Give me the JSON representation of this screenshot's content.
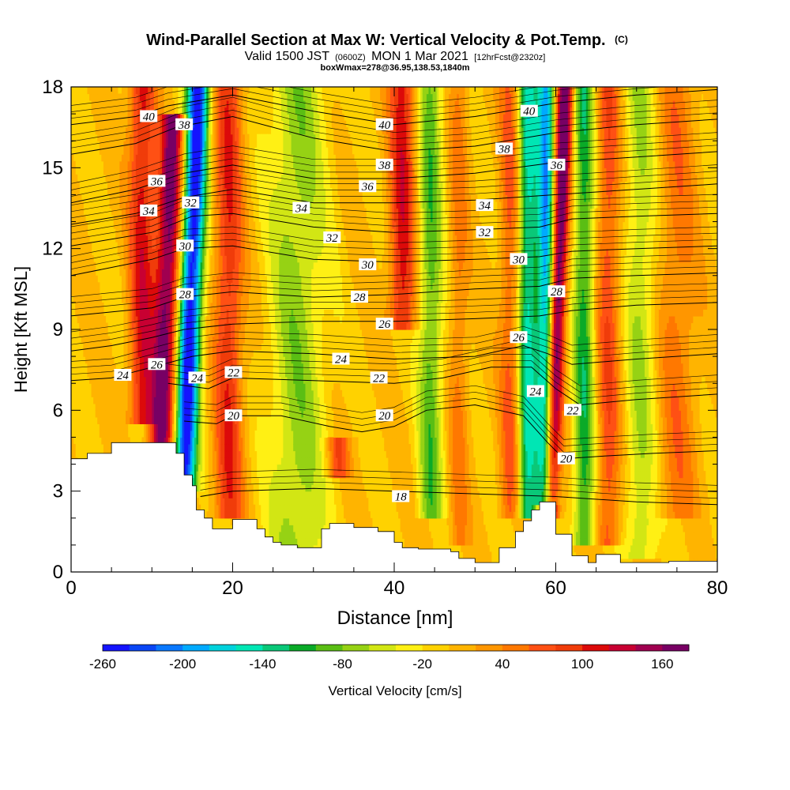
{
  "chart_data": {
    "type": "heatmap",
    "title": "Wind-Parallel Section at Max W: Vertical Velocity & Pot.Temp.",
    "title_mark": "(C)",
    "subtitle_parts": [
      "Valid 1500 JST",
      "(0600Z)",
      "MON 1 Mar 2021",
      "[12hrFcst@2320z]"
    ],
    "subtitle2": "boxWmax=278@36.95,138.53,1840m",
    "xlabel": "Distance [nm]",
    "ylabel": "Height [Kft MSL]",
    "xlim": [
      0,
      80
    ],
    "ylim": [
      0,
      18
    ],
    "x_ticks": [
      0,
      20,
      40,
      60,
      80
    ],
    "y_ticks": [
      0,
      3,
      6,
      9,
      12,
      15,
      18
    ],
    "colorbar": {
      "label": "Vertical Velocity [cm/s]",
      "ticks": [
        -260,
        -200,
        -140,
        -80,
        -20,
        40,
        100,
        160
      ],
      "range": [
        -260,
        180
      ],
      "colors": [
        "#1414ff",
        "#0a46f5",
        "#0a78ff",
        "#00aaff",
        "#00d2dc",
        "#00e6b4",
        "#0ac878",
        "#0aaa28",
        "#5abe14",
        "#96d214",
        "#d2e614",
        "#fff014",
        "#ffd200",
        "#ffb400",
        "#ff9600",
        "#ff7800",
        "#ff5014",
        "#f03c0a",
        "#dc0a0a",
        "#c80032",
        "#a00050",
        "#780064"
      ]
    },
    "terrain": [
      [
        0,
        4.2
      ],
      [
        2,
        4.2
      ],
      [
        2,
        4.4
      ],
      [
        5,
        4.4
      ],
      [
        5,
        4.8
      ],
      [
        13,
        4.8
      ],
      [
        13,
        4.4
      ],
      [
        14,
        4.4
      ],
      [
        14,
        3.6
      ],
      [
        15,
        3.6
      ],
      [
        15,
        3.2
      ],
      [
        15.5,
        3.2
      ],
      [
        15.5,
        2.3
      ],
      [
        16.5,
        2.3
      ],
      [
        16.5,
        2.0
      ],
      [
        17.5,
        2.0
      ],
      [
        17.5,
        1.6
      ],
      [
        20,
        1.6
      ],
      [
        20,
        1.95
      ],
      [
        23,
        1.95
      ],
      [
        23,
        1.6
      ],
      [
        24,
        1.6
      ],
      [
        24,
        1.3
      ],
      [
        25,
        1.3
      ],
      [
        25,
        1.1
      ],
      [
        26,
        1.1
      ],
      [
        26,
        1.0
      ],
      [
        28,
        1.0
      ],
      [
        28,
        0.9
      ],
      [
        31,
        0.9
      ],
      [
        31,
        1.6
      ],
      [
        32,
        1.6
      ],
      [
        32,
        1.8
      ],
      [
        35,
        1.8
      ],
      [
        35,
        1.65
      ],
      [
        38,
        1.65
      ],
      [
        38,
        1.5
      ],
      [
        40,
        1.5
      ],
      [
        40,
        1.1
      ],
      [
        41,
        1.1
      ],
      [
        41,
        0.9
      ],
      [
        43,
        0.9
      ],
      [
        43,
        0.85
      ],
      [
        47,
        0.85
      ],
      [
        47,
        0.75
      ],
      [
        48,
        0.75
      ],
      [
        48,
        0.5
      ],
      [
        50,
        0.5
      ],
      [
        50,
        0.35
      ],
      [
        53,
        0.35
      ],
      [
        53,
        0.9
      ],
      [
        55,
        0.9
      ],
      [
        55,
        1.5
      ],
      [
        56,
        1.5
      ],
      [
        56,
        1.9
      ],
      [
        57,
        1.9
      ],
      [
        57,
        2.3
      ],
      [
        58,
        2.3
      ],
      [
        58,
        2.6
      ],
      [
        60,
        2.6
      ],
      [
        60,
        1.4
      ],
      [
        62,
        1.4
      ],
      [
        62,
        0.6
      ],
      [
        64,
        0.6
      ],
      [
        64,
        0.35
      ],
      [
        65,
        0.35
      ],
      [
        65,
        0.65
      ],
      [
        68,
        0.65
      ],
      [
        68,
        0.35
      ],
      [
        74,
        0.35
      ],
      [
        74,
        0.4
      ],
      [
        80,
        0.4
      ]
    ],
    "vertical_velocity_features": [
      {
        "x": 8.8,
        "width": 1.6,
        "amplitude": 110,
        "z_range": [
          5.5,
          18
        ]
      },
      {
        "x": 11.8,
        "width": 1.5,
        "amplitude": 170,
        "z_range": [
          2,
          17
        ]
      },
      {
        "x": 14.8,
        "width": 1.4,
        "amplitude": -260,
        "z_range": [
          3,
          18
        ]
      },
      {
        "x": 19.5,
        "width": 1.8,
        "amplitude": 95,
        "z_range": [
          2,
          18
        ]
      },
      {
        "x": 28,
        "width": 3.5,
        "amplitude": -70,
        "z_range": [
          0,
          18
        ]
      },
      {
        "x": 33,
        "width": 1.4,
        "amplitude": 80,
        "z_range": [
          3.5,
          5
        ]
      },
      {
        "x": 41,
        "width": 1.6,
        "amplitude": 110,
        "z_range": [
          9,
          18
        ]
      },
      {
        "x": 44.5,
        "width": 1.5,
        "amplitude": -90,
        "z_range": [
          2,
          18
        ]
      },
      {
        "x": 48,
        "width": 1.2,
        "amplitude": 45,
        "z_range": [
          1,
          18
        ]
      },
      {
        "x": 54.5,
        "width": 1.4,
        "amplitude": 70,
        "z_range": [
          2,
          18
        ]
      },
      {
        "x": 56.5,
        "width": 1.3,
        "amplitude": -150,
        "z_range": [
          2,
          18
        ]
      },
      {
        "x": 58.8,
        "width": 1.1,
        "amplitude": -190,
        "z_range": [
          2.5,
          18
        ]
      },
      {
        "x": 60.2,
        "width": 1.0,
        "amplitude": 200,
        "z_range": [
          2,
          18
        ]
      },
      {
        "x": 63.5,
        "width": 1.3,
        "amplitude": -110,
        "z_range": [
          1,
          18
        ]
      },
      {
        "x": 66.5,
        "width": 1.5,
        "amplitude": 75,
        "z_range": [
          1,
          18
        ]
      },
      {
        "x": 70.5,
        "width": 2.0,
        "amplitude": -60,
        "z_range": [
          0.5,
          18
        ]
      },
      {
        "x": 75,
        "width": 2.5,
        "amplitude": 50,
        "z_range": [
          2,
          18
        ]
      }
    ],
    "theta_contours": [
      {
        "value": 18,
        "points": [
          [
            16,
            2.8
          ],
          [
            20,
            3.0
          ],
          [
            30,
            3.1
          ],
          [
            40,
            3.0
          ],
          [
            50,
            2.9
          ],
          [
            60,
            2.8
          ],
          [
            70,
            2.6
          ],
          [
            80,
            2.5
          ]
        ]
      },
      {
        "value": 20,
        "points": [
          [
            14,
            5.6
          ],
          [
            18,
            5.5
          ],
          [
            20,
            5.8
          ],
          [
            26,
            5.8
          ],
          [
            32,
            5.4
          ],
          [
            36,
            5.2
          ],
          [
            40,
            5.4
          ],
          [
            44,
            6.0
          ],
          [
            50,
            6.2
          ],
          [
            56,
            5.8
          ],
          [
            59,
            4.8
          ],
          [
            61,
            4.2
          ],
          [
            66,
            4.3
          ],
          [
            72,
            4.4
          ],
          [
            80,
            4.5
          ]
        ]
      },
      {
        "value": 22,
        "points": [
          [
            12,
            7.0
          ],
          [
            17,
            6.8
          ],
          [
            20,
            7.2
          ],
          [
            30,
            7.1
          ],
          [
            40,
            7.0
          ],
          [
            46,
            7.2
          ],
          [
            52,
            7.6
          ],
          [
            57,
            7.6
          ],
          [
            60,
            6.8
          ],
          [
            63,
            6.2
          ],
          [
            70,
            6.4
          ],
          [
            80,
            6.6
          ]
        ]
      },
      {
        "value": 24,
        "points": [
          [
            0,
            7.1
          ],
          [
            5,
            7.2
          ],
          [
            10,
            7.6
          ],
          [
            15,
            8.0
          ],
          [
            20,
            8.2
          ],
          [
            30,
            8.1
          ],
          [
            40,
            7.9
          ],
          [
            50,
            8.0
          ],
          [
            56,
            8.4
          ],
          [
            59,
            8.1
          ],
          [
            62,
            7.7
          ],
          [
            70,
            7.9
          ],
          [
            80,
            8.1
          ]
        ]
      },
      {
        "value": 26,
        "points": [
          [
            0,
            8.2
          ],
          [
            5,
            8.4
          ],
          [
            10,
            8.7
          ],
          [
            14,
            9.0
          ],
          [
            20,
            9.2
          ],
          [
            30,
            9.3
          ],
          [
            40,
            9.3
          ],
          [
            50,
            9.4
          ],
          [
            58,
            9.5
          ],
          [
            62,
            9.7
          ],
          [
            70,
            9.9
          ],
          [
            80,
            10.0
          ]
        ]
      },
      {
        "value": 28,
        "points": [
          [
            0,
            9.5
          ],
          [
            10,
            9.8
          ],
          [
            14,
            10.2
          ],
          [
            20,
            10.4
          ],
          [
            30,
            10.2
          ],
          [
            40,
            10.3
          ],
          [
            50,
            10.5
          ],
          [
            58,
            10.6
          ],
          [
            62,
            10.9
          ],
          [
            70,
            11.0
          ],
          [
            80,
            11.1
          ]
        ]
      },
      {
        "value": 30,
        "points": [
          [
            0,
            11.0
          ],
          [
            10,
            11.6
          ],
          [
            14,
            12.0
          ],
          [
            20,
            12.1
          ],
          [
            30,
            11.6
          ],
          [
            40,
            11.5
          ],
          [
            50,
            11.6
          ],
          [
            58,
            11.7
          ],
          [
            62,
            11.9
          ],
          [
            70,
            12.0
          ],
          [
            80,
            12.1
          ]
        ]
      },
      {
        "value": 32,
        "points": [
          [
            0,
            12.1
          ],
          [
            10,
            12.6
          ],
          [
            15,
            13.2
          ],
          [
            20,
            13.3
          ],
          [
            30,
            12.8
          ],
          [
            40,
            12.6
          ],
          [
            50,
            12.7
          ],
          [
            58,
            12.8
          ],
          [
            62,
            13.1
          ],
          [
            70,
            13.2
          ],
          [
            80,
            13.3
          ]
        ]
      },
      {
        "value": 34,
        "points": [
          [
            0,
            12.9
          ],
          [
            8,
            13.3
          ],
          [
            14,
            13.9
          ],
          [
            20,
            14.2
          ],
          [
            30,
            13.7
          ],
          [
            40,
            13.7
          ],
          [
            50,
            13.8
          ],
          [
            60,
            14.0
          ],
          [
            70,
            14.2
          ],
          [
            80,
            14.4
          ]
        ]
      },
      {
        "value": 36,
        "points": [
          [
            0,
            13.7
          ],
          [
            8,
            14.2
          ],
          [
            14,
            14.8
          ],
          [
            20,
            15.1
          ],
          [
            30,
            14.6
          ],
          [
            40,
            14.6
          ],
          [
            50,
            14.8
          ],
          [
            60,
            15.2
          ],
          [
            70,
            15.4
          ],
          [
            80,
            15.6
          ]
        ]
      },
      {
        "value": 38,
        "points": [
          [
            0,
            15.5
          ],
          [
            8,
            15.9
          ],
          [
            13,
            16.5
          ],
          [
            20,
            16.9
          ],
          [
            30,
            16.1
          ],
          [
            40,
            15.6
          ],
          [
            50,
            15.8
          ],
          [
            60,
            16.3
          ],
          [
            70,
            16.6
          ],
          [
            80,
            16.8
          ]
        ]
      },
      {
        "value": 40,
        "points": [
          [
            0,
            16.6
          ],
          [
            8,
            16.9
          ],
          [
            12,
            17.3
          ],
          [
            20,
            17.7
          ],
          [
            30,
            17.1
          ],
          [
            40,
            16.6
          ],
          [
            50,
            16.9
          ],
          [
            60,
            17.4
          ],
          [
            70,
            17.7
          ],
          [
            80,
            17.9
          ]
        ]
      }
    ],
    "contour_labels": [
      {
        "text": "40",
        "x": 9.6,
        "y": 16.9
      },
      {
        "text": "38",
        "x": 14.0,
        "y": 16.6
      },
      {
        "text": "40",
        "x": 38.8,
        "y": 16.6
      },
      {
        "text": "40",
        "x": 56.7,
        "y": 17.1
      },
      {
        "text": "38",
        "x": 53.6,
        "y": 15.7
      },
      {
        "text": "38",
        "x": 38.8,
        "y": 15.1
      },
      {
        "text": "36",
        "x": 10.6,
        "y": 14.5
      },
      {
        "text": "36",
        "x": 36.7,
        "y": 14.3
      },
      {
        "text": "36",
        "x": 60.1,
        "y": 15.1
      },
      {
        "text": "32",
        "x": 14.8,
        "y": 13.7
      },
      {
        "text": "34",
        "x": 9.6,
        "y": 13.4
      },
      {
        "text": "34",
        "x": 28.5,
        "y": 13.5
      },
      {
        "text": "34",
        "x": 51.2,
        "y": 13.6
      },
      {
        "text": "32",
        "x": 32.3,
        "y": 12.4
      },
      {
        "text": "32",
        "x": 51.2,
        "y": 12.6
      },
      {
        "text": "30",
        "x": 14.1,
        "y": 12.1
      },
      {
        "text": "30",
        "x": 36.7,
        "y": 11.4
      },
      {
        "text": "30",
        "x": 55.4,
        "y": 11.6
      },
      {
        "text": "28",
        "x": 14.1,
        "y": 10.3
      },
      {
        "text": "28",
        "x": 35.7,
        "y": 10.2
      },
      {
        "text": "28",
        "x": 60.1,
        "y": 10.4
      },
      {
        "text": "26",
        "x": 38.8,
        "y": 9.2
      },
      {
        "text": "26",
        "x": 55.4,
        "y": 8.7
      },
      {
        "text": "26",
        "x": 10.6,
        "y": 7.7
      },
      {
        "text": "24",
        "x": 6.4,
        "y": 7.3
      },
      {
        "text": "24",
        "x": 15.6,
        "y": 7.2
      },
      {
        "text": "24",
        "x": 33.4,
        "y": 7.9
      },
      {
        "text": "22",
        "x": 20.1,
        "y": 7.4
      },
      {
        "text": "22",
        "x": 38.1,
        "y": 7.2
      },
      {
        "text": "24",
        "x": 57.5,
        "y": 6.7
      },
      {
        "text": "22",
        "x": 62.1,
        "y": 6.0
      },
      {
        "text": "20",
        "x": 20.1,
        "y": 5.8
      },
      {
        "text": "20",
        "x": 38.8,
        "y": 5.8
      },
      {
        "text": "20",
        "x": 61.3,
        "y": 4.2
      },
      {
        "text": "18",
        "x": 40.8,
        "y": 2.8
      }
    ]
  }
}
